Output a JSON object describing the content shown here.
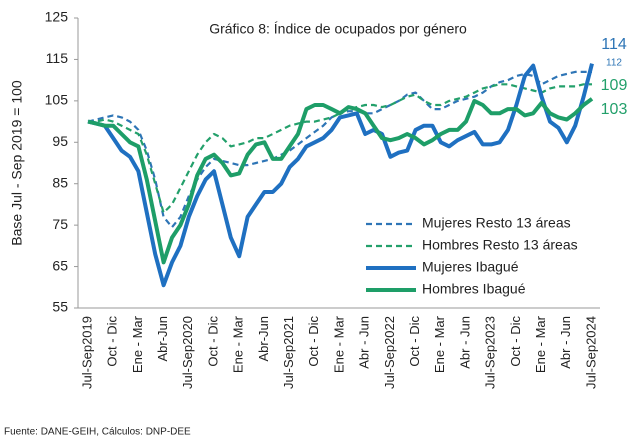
{
  "chart_data": {
    "type": "line",
    "title": "Gráfico 8: Índice de ocupados por género",
    "y_label": "Base Jul - Sep 2019 = 100",
    "source": "Fuente: DANE-GEIH, Cálculos: DNP-DEE",
    "categories": [
      "Jul-Sep2019",
      null,
      null,
      "Oct - Dic",
      null,
      null,
      "Ene - Mar",
      null,
      null,
      "Abr-Jun",
      null,
      null,
      "Jul-Sep2020",
      null,
      null,
      "Oct - Dic",
      null,
      null,
      "Ene - Mar",
      null,
      null,
      "Abr-Jun",
      null,
      null,
      "Jul-Sep2021",
      null,
      null,
      "Oct - Dic",
      null,
      null,
      "Ene - Mar",
      null,
      null,
      "Abr - Jun",
      null,
      null,
      "Jul-Sep2022",
      null,
      null,
      "Oct - Dic",
      null,
      null,
      "Ene - Mar",
      null,
      null,
      "Abr - Jun",
      null,
      null,
      "Jul-Sep2023",
      null,
      null,
      "Oct - Dic",
      null,
      null,
      "Ene - Mar",
      null,
      null,
      "Abr - Jun",
      null,
      null,
      "Jul-Sep2024"
    ],
    "series": [
      {
        "name": "Mujeres Resto 13 áreas",
        "color": "#2e75b6",
        "dashed": true,
        "values": [
          100,
          100.5,
          101,
          101.5,
          101,
          100,
          98,
          93,
          86,
          77,
          74.5,
          77,
          82,
          86,
          89,
          91,
          90.5,
          90,
          89.5,
          89.5,
          90,
          90.5,
          91,
          92,
          93,
          94.5,
          96,
          97.5,
          99,
          101,
          102,
          102.5,
          102.5,
          102,
          102,
          103,
          104,
          105,
          106.5,
          107,
          105,
          103,
          103,
          104,
          105,
          105.5,
          106,
          107,
          108.5,
          109.5,
          110,
          111,
          111.5,
          111,
          109,
          110,
          111,
          111.5,
          112,
          112,
          112
        ]
      },
      {
        "name": "Hombres Resto 13 áreas",
        "color": "#23a06b",
        "dashed": true,
        "values": [
          100,
          100,
          100.5,
          100,
          99,
          98,
          97,
          92,
          85,
          78,
          80,
          84,
          88,
          92,
          95,
          97,
          96,
          94,
          94.5,
          95,
          96,
          96,
          97,
          98,
          99,
          99.5,
          100,
          100,
          100.5,
          101,
          102,
          103,
          103.5,
          104,
          104,
          103.5,
          104,
          105,
          106,
          106.5,
          105,
          104,
          104,
          105,
          105.5,
          106,
          107,
          108,
          108.5,
          109,
          109,
          108.5,
          108,
          107.5,
          107,
          108,
          108.5,
          108.5,
          108.5,
          109,
          109
        ]
      },
      {
        "name": "Mujeres Ibagué",
        "color": "#1f70c1",
        "dashed": false,
        "values": [
          100,
          99.5,
          99,
          96,
          93,
          91.5,
          88,
          78,
          68,
          60.5,
          66,
          70,
          77,
          82,
          86,
          88,
          80,
          72,
          67.5,
          77,
          80,
          83,
          83,
          85,
          89,
          91,
          94,
          95,
          96,
          98,
          101,
          101.5,
          102,
          97,
          98,
          97,
          91.5,
          92.5,
          93,
          98,
          99,
          99,
          95,
          94,
          95.5,
          96.5,
          97.5,
          94.5,
          94.5,
          95,
          98,
          104,
          111,
          113.5,
          106,
          100,
          98.5,
          95,
          99,
          106,
          114
        ]
      },
      {
        "name": "Hombres Ibagué",
        "color": "#1e9e68",
        "dashed": false,
        "values": [
          100,
          99.5,
          99,
          99,
          97,
          95,
          94,
          86,
          76,
          66,
          72,
          75,
          80,
          87,
          91,
          92,
          90,
          87,
          87.5,
          92,
          94.5,
          95,
          91,
          91,
          94,
          97,
          103,
          104,
          104,
          103,
          102,
          103.5,
          103,
          102,
          99,
          96,
          95.5,
          96,
          97,
          96,
          94.5,
          95.5,
          97,
          98,
          98,
          100,
          105,
          104,
          102,
          102,
          103,
          103,
          101.5,
          102,
          104.5,
          102,
          101,
          100.5,
          102,
          104,
          105.5
        ]
      }
    ],
    "annotations": [
      {
        "text": "114",
        "color": "#2e75b6"
      },
      {
        "text": "112",
        "color": "#2e75b6"
      },
      {
        "text": "109",
        "color": "#23a06b"
      },
      {
        "text": "103",
        "color": "#23a06b"
      }
    ],
    "ylim": [
      55,
      125
    ],
    "yticks": [
      55,
      65,
      75,
      85,
      95,
      105,
      115,
      125
    ],
    "grid": false,
    "legend": "lower right"
  }
}
